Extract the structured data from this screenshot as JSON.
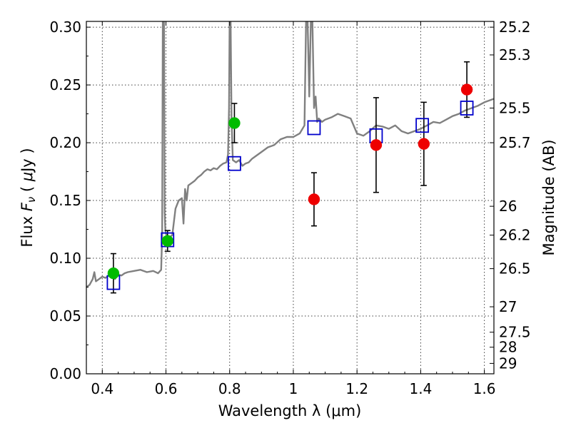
{
  "chart_data": {
    "type": "scatter",
    "title": "",
    "xlabel": "Wavelength  λ (μm)",
    "ylabel": "Flux  Fν  ( μJy )",
    "y2label": "Magnitude (AB)",
    "xlim": [
      0.35,
      1.63
    ],
    "ylim": [
      0.0,
      0.305
    ],
    "grid": true,
    "x_ticks": [
      0.4,
      0.6,
      0.8,
      1.0,
      1.2,
      1.4,
      1.6
    ],
    "x_tick_labels": [
      "0.4",
      "0.6",
      "0.8",
      "1",
      "1.2",
      "1.4",
      "1.6"
    ],
    "y_ticks": [
      0.0,
      0.05,
      0.1,
      0.15,
      0.2,
      0.25,
      0.3
    ],
    "y_tick_labels": [
      "0.00",
      "0.05",
      "0.10",
      "0.15",
      "0.20",
      "0.25",
      "0.30"
    ],
    "y2_ticks": [
      {
        "flux": 0.3,
        "label": "25.2"
      },
      {
        "flux": 0.276,
        "label": "25.3"
      },
      {
        "flux": 0.23,
        "label": "25.5"
      },
      {
        "flux": 0.2,
        "label": "25.7"
      },
      {
        "flux": 0.145,
        "label": "26"
      },
      {
        "flux": 0.12,
        "label": "26.2"
      },
      {
        "flux": 0.091,
        "label": "26.5"
      },
      {
        "flux": 0.058,
        "label": "27"
      },
      {
        "flux": 0.036,
        "label": "27.5"
      },
      {
        "flux": 0.023,
        "label": "28"
      },
      {
        "flux": 0.009,
        "label": "29"
      }
    ],
    "colors": {
      "model": "#808080",
      "green": "#00bb00",
      "red": "#ee0000",
      "square": "#0000cc",
      "errorbar": "#000000"
    },
    "series": [
      {
        "kind": "line",
        "color": "model",
        "x": [
          0.35,
          0.36,
          0.37,
          0.375,
          0.38,
          0.39,
          0.4,
          0.41,
          0.42,
          0.43,
          0.44,
          0.45,
          0.46,
          0.47,
          0.48,
          0.5,
          0.52,
          0.54,
          0.56,
          0.575,
          0.585,
          0.588,
          0.59,
          0.592,
          0.594,
          0.596,
          0.598,
          0.6,
          0.61,
          0.62,
          0.63,
          0.64,
          0.65,
          0.655,
          0.66,
          0.665,
          0.67,
          0.68,
          0.69,
          0.7,
          0.71,
          0.72,
          0.73,
          0.74,
          0.75,
          0.76,
          0.77,
          0.78,
          0.79,
          0.795,
          0.798,
          0.8,
          0.803,
          0.806,
          0.81,
          0.82,
          0.83,
          0.84,
          0.85,
          0.86,
          0.87,
          0.88,
          0.9,
          0.92,
          0.94,
          0.96,
          0.98,
          1.0,
          1.02,
          1.035,
          1.04,
          1.045,
          1.05,
          1.055,
          1.06,
          1.065,
          1.07,
          1.075,
          1.08,
          1.09,
          1.1,
          1.12,
          1.14,
          1.16,
          1.18,
          1.2,
          1.22,
          1.24,
          1.26,
          1.28,
          1.3,
          1.32,
          1.34,
          1.36,
          1.38,
          1.4,
          1.42,
          1.44,
          1.46,
          1.48,
          1.5,
          1.52,
          1.54,
          1.56,
          1.58,
          1.6,
          1.63
        ],
        "y": [
          0.075,
          0.077,
          0.082,
          0.088,
          0.08,
          0.082,
          0.084,
          0.083,
          0.085,
          0.084,
          0.082,
          0.086,
          0.085,
          0.087,
          0.088,
          0.089,
          0.09,
          0.088,
          0.089,
          0.087,
          0.09,
          0.12,
          0.305,
          0.305,
          0.305,
          0.14,
          0.125,
          0.121,
          0.118,
          0.12,
          0.143,
          0.15,
          0.152,
          0.13,
          0.16,
          0.15,
          0.163,
          0.165,
          0.167,
          0.17,
          0.172,
          0.175,
          0.177,
          0.176,
          0.178,
          0.177,
          0.18,
          0.182,
          0.183,
          0.19,
          0.23,
          0.305,
          0.305,
          0.22,
          0.185,
          0.183,
          0.185,
          0.18,
          0.182,
          0.183,
          0.186,
          0.188,
          0.192,
          0.196,
          0.198,
          0.203,
          0.205,
          0.205,
          0.208,
          0.215,
          0.305,
          0.305,
          0.24,
          0.305,
          0.305,
          0.23,
          0.24,
          0.218,
          0.221,
          0.218,
          0.22,
          0.222,
          0.225,
          0.223,
          0.221,
          0.208,
          0.206,
          0.21,
          0.215,
          0.214,
          0.212,
          0.215,
          0.21,
          0.208,
          0.21,
          0.212,
          0.215,
          0.218,
          0.217,
          0.22,
          0.223,
          0.225,
          0.228,
          0.23,
          0.232,
          0.235,
          0.238
        ]
      },
      {
        "kind": "squares",
        "color": "square",
        "x": [
          0.435,
          0.605,
          0.815,
          1.065,
          1.26,
          1.405,
          1.545
        ],
        "y": [
          0.079,
          0.116,
          0.182,
          0.213,
          0.206,
          0.215,
          0.23
        ]
      },
      {
        "kind": "points",
        "color": "green",
        "x": [
          0.435,
          0.605,
          0.815
        ],
        "y": [
          0.087,
          0.115,
          0.217
        ],
        "yerr": [
          0.017,
          0.009,
          0.017
        ]
      },
      {
        "kind": "points",
        "color": "red",
        "x": [
          1.065,
          1.26,
          1.41,
          1.545
        ],
        "y": [
          0.151,
          0.198,
          0.199,
          0.246
        ],
        "yerr": [
          0.023,
          0.041,
          0.036,
          0.024
        ]
      }
    ]
  }
}
